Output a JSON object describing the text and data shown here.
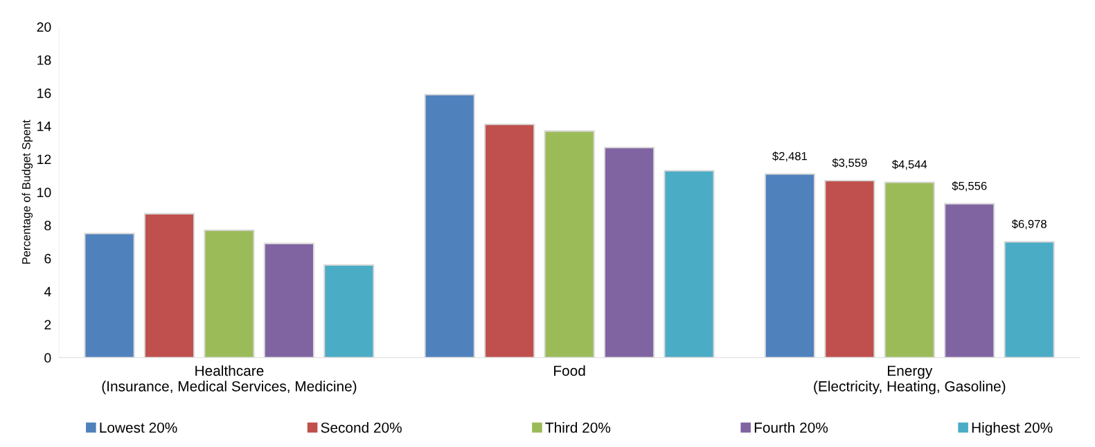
{
  "chart_data": {
    "type": "bar",
    "ylabel": "Percentage of Budget Spent",
    "categories": [
      "Healthcare\n(Insurance, Medical Services, Medicine)",
      "Food",
      "Energy\n(Electricity, Heating, Gasoline)"
    ],
    "series": [
      {
        "name": "Lowest 20%",
        "color": "#4f81bd",
        "values": [
          7.5,
          15.9,
          11.1
        ]
      },
      {
        "name": "Second 20%",
        "color": "#c0504d",
        "values": [
          8.7,
          14.1,
          10.7
        ]
      },
      {
        "name": "Third 20%",
        "color": "#9bbb59",
        "values": [
          7.7,
          13.7,
          10.6
        ]
      },
      {
        "name": "Fourth 20%",
        "color": "#8064a2",
        "values": [
          6.9,
          12.7,
          9.3
        ]
      },
      {
        "name": "Highest 20%",
        "color": "#4bacc6",
        "values": [
          5.6,
          11.3,
          7.0
        ]
      }
    ],
    "annotations": [
      "$2,481",
      "$3,559",
      "$4,544",
      "$5,556",
      "$6,978"
    ],
    "ylim": [
      0,
      20
    ],
    "yticks": [
      0,
      2,
      4,
      6,
      8,
      10,
      12,
      14,
      16,
      18,
      20
    ],
    "grid": false,
    "legend": "bottom"
  }
}
